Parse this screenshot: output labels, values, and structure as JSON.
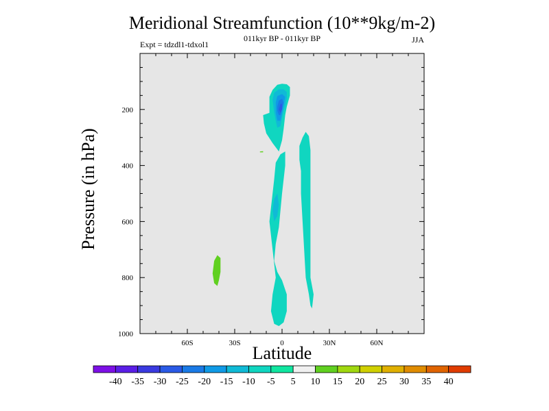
{
  "chart_data": {
    "type": "contour",
    "title": "Meridional Streamfunction (10**9kg/m-2)",
    "subtitle_left": "Expt = tdzdl1-tdxol1",
    "subtitle_center": "011kyr BP - 011kyr BP",
    "subtitle_right": "JJA",
    "xlabel": "Latitude",
    "ylabel": "Pressure (in hPa)",
    "xlim": [
      -90,
      90
    ],
    "ylim": [
      1000,
      0
    ],
    "x_ticks": [
      {
        "value": -60,
        "label": "60S"
      },
      {
        "value": -30,
        "label": "30S"
      },
      {
        "value": 0,
        "label": "0"
      },
      {
        "value": 30,
        "label": "30N"
      },
      {
        "value": 60,
        "label": "60N"
      }
    ],
    "y_ticks": [
      {
        "value": 200,
        "label": "200"
      },
      {
        "value": 400,
        "label": "400"
      },
      {
        "value": 600,
        "label": "600"
      },
      {
        "value": 800,
        "label": "800"
      },
      {
        "value": 1000,
        "label": "1000"
      }
    ],
    "background_color": "#e6e6e6",
    "colorbar": {
      "levels": [
        "-40",
        "-35",
        "-30",
        "-25",
        "-20",
        "-15",
        "-10",
        "-5",
        "5",
        "10",
        "15",
        "20",
        "25",
        "30",
        "35",
        "40"
      ],
      "colors": [
        "#7d10e6",
        "#5a1ee6",
        "#3a3ae0",
        "#2a5ae6",
        "#1a7ae6",
        "#109ae6",
        "#10bad6",
        "#10d6c0",
        "#10e6a0",
        "#f0f0f0",
        "#60d020",
        "#a0d810",
        "#d0d000",
        "#e0b000",
        "#e08c00",
        "#e06400",
        "#e03c00"
      ]
    },
    "regions": [
      {
        "name": "neg-5-to-10-upper",
        "level_index": 7,
        "points": [
          [
            -11.5,
            250
          ],
          [
            -12,
            220
          ],
          [
            -8,
            212
          ],
          [
            -8,
            190
          ],
          [
            -8,
            155
          ],
          [
            -6,
            130
          ],
          [
            -3,
            112
          ],
          [
            0,
            108
          ],
          [
            3,
            110
          ],
          [
            5,
            120
          ],
          [
            5,
            150
          ],
          [
            4,
            170
          ],
          [
            3,
            190
          ],
          [
            2,
            220
          ],
          [
            1,
            270
          ],
          [
            0,
            310
          ],
          [
            -2,
            350
          ],
          [
            -6,
            320
          ],
          [
            -10,
            285
          ]
        ]
      },
      {
        "name": "neg-5-to-10-column",
        "level_index": 7,
        "points": [
          [
            -4,
            390
          ],
          [
            -1,
            360
          ],
          [
            2,
            350
          ],
          [
            2,
            400
          ],
          [
            1,
            450
          ],
          [
            0,
            500
          ],
          [
            -1,
            560
          ],
          [
            -2,
            620
          ],
          [
            -4,
            680
          ],
          [
            -5,
            740
          ],
          [
            -3,
            780
          ],
          [
            0,
            810
          ],
          [
            3,
            860
          ],
          [
            3,
            920
          ],
          [
            1,
            960
          ],
          [
            -2,
            973
          ],
          [
            -5,
            965
          ],
          [
            -7,
            920
          ],
          [
            -6,
            860
          ],
          [
            -4,
            800
          ],
          [
            -5,
            750
          ],
          [
            -6,
            700
          ],
          [
            -7,
            650
          ],
          [
            -8,
            600
          ],
          [
            -7,
            550
          ],
          [
            -6,
            500
          ],
          [
            -5,
            450
          ]
        ]
      },
      {
        "name": "neg-5-to-10-nh",
        "level_index": 7,
        "points": [
          [
            11,
            330
          ],
          [
            13,
            300
          ],
          [
            15,
            280
          ],
          [
            17,
            295
          ],
          [
            18,
            345
          ],
          [
            18,
            420
          ],
          [
            18,
            500
          ],
          [
            18,
            600
          ],
          [
            18,
            700
          ],
          [
            18,
            800
          ],
          [
            20,
            860
          ],
          [
            19,
            910
          ],
          [
            18,
            900
          ],
          [
            17,
            860
          ],
          [
            15,
            800
          ],
          [
            14,
            700
          ],
          [
            13,
            600
          ],
          [
            12,
            500
          ],
          [
            12,
            420
          ],
          [
            11,
            380
          ]
        ]
      },
      {
        "name": "neg-10-to-15",
        "level_index": 6,
        "points": [
          [
            -6,
            165
          ],
          [
            -5,
            140
          ],
          [
            -2,
            128
          ],
          [
            1,
            128
          ],
          [
            3,
            138
          ],
          [
            3,
            160
          ],
          [
            2,
            185
          ],
          [
            1,
            205
          ],
          [
            0,
            230
          ],
          [
            -1,
            260
          ],
          [
            -3,
            265
          ],
          [
            -4,
            240
          ],
          [
            -5,
            210
          ]
        ]
      },
      {
        "name": "neg-10-to-15-mid",
        "level_index": 6,
        "points": [
          [
            -6,
            560
          ],
          [
            -5,
            520
          ],
          [
            -3,
            500
          ],
          [
            -2,
            540
          ],
          [
            -3,
            580
          ],
          [
            -5,
            600
          ]
        ]
      },
      {
        "name": "neg-15-to-20",
        "level_index": 5,
        "points": [
          [
            -4,
            175
          ],
          [
            -3,
            152
          ],
          [
            0,
            145
          ],
          [
            2,
            155
          ],
          [
            1,
            185
          ],
          [
            0,
            215
          ],
          [
            -1,
            240
          ],
          [
            -3,
            240
          ],
          [
            -4,
            210
          ]
        ]
      },
      {
        "name": "neg-20-to-25",
        "level_index": 4,
        "points": [
          [
            -3,
            190
          ],
          [
            -2,
            168
          ],
          [
            0,
            162
          ],
          [
            1,
            175
          ],
          [
            0,
            200
          ],
          [
            -1,
            220
          ],
          [
            -2,
            220
          ],
          [
            -3,
            205
          ]
        ]
      },
      {
        "name": "neg-25-to-30",
        "level_index": 3,
        "points": [
          [
            -2,
            200
          ],
          [
            -1,
            180
          ],
          [
            0,
            180
          ],
          [
            0,
            200
          ],
          [
            -1,
            212
          ]
        ]
      },
      {
        "name": "pos-5-to-10-sh",
        "level_index": 10,
        "points": [
          [
            -44,
            785
          ],
          [
            -43,
            740
          ],
          [
            -41,
            720
          ],
          [
            -39,
            730
          ],
          [
            -39,
            780
          ],
          [
            -40,
            810
          ],
          [
            -41,
            830
          ],
          [
            -43,
            820
          ]
        ]
      },
      {
        "name": "pos-5-to-10-speck",
        "level_index": 10,
        "points": [
          [
            -14,
            350
          ],
          [
            -12,
            349
          ],
          [
            -12,
            353
          ],
          [
            -14,
            353
          ]
        ]
      }
    ]
  }
}
